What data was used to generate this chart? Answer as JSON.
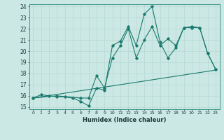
{
  "title": "",
  "xlabel": "Humidex (Indice chaleur)",
  "xlim": [
    -0.5,
    23.5
  ],
  "ylim": [
    14.8,
    24.2
  ],
  "yticks": [
    15,
    16,
    17,
    18,
    19,
    20,
    21,
    22,
    23,
    24
  ],
  "xticks": [
    0,
    1,
    2,
    3,
    4,
    5,
    6,
    7,
    8,
    9,
    10,
    11,
    12,
    13,
    14,
    15,
    16,
    17,
    18,
    19,
    20,
    21,
    22,
    23
  ],
  "bg_color": "#cce8e4",
  "line_color": "#1a7a6e",
  "line1_x": [
    0,
    1,
    2,
    3,
    4,
    5,
    6,
    7,
    8,
    9,
    10,
    11,
    12,
    13,
    14,
    15,
    16,
    17,
    18,
    19,
    20,
    21,
    22,
    23
  ],
  "line1_y": [
    15.8,
    16.1,
    16.0,
    15.9,
    15.9,
    15.8,
    15.5,
    15.1,
    16.7,
    16.5,
    20.5,
    20.9,
    22.2,
    20.5,
    23.3,
    24.0,
    20.8,
    19.4,
    20.3,
    22.1,
    22.2,
    22.1,
    19.8,
    18.4
  ],
  "line2_x": [
    0,
    3,
    6,
    7,
    8,
    9,
    10,
    11,
    12,
    13,
    14,
    15,
    16,
    17,
    18,
    19,
    20,
    21,
    22,
    23
  ],
  "line2_y": [
    15.8,
    16.0,
    15.8,
    15.8,
    17.8,
    16.7,
    19.4,
    20.5,
    22.0,
    19.4,
    21.0,
    22.2,
    20.5,
    21.1,
    20.5,
    22.1,
    22.1,
    22.1,
    19.8,
    18.4
  ],
  "line3_x": [
    0,
    23
  ],
  "line3_y": [
    15.8,
    18.3
  ]
}
